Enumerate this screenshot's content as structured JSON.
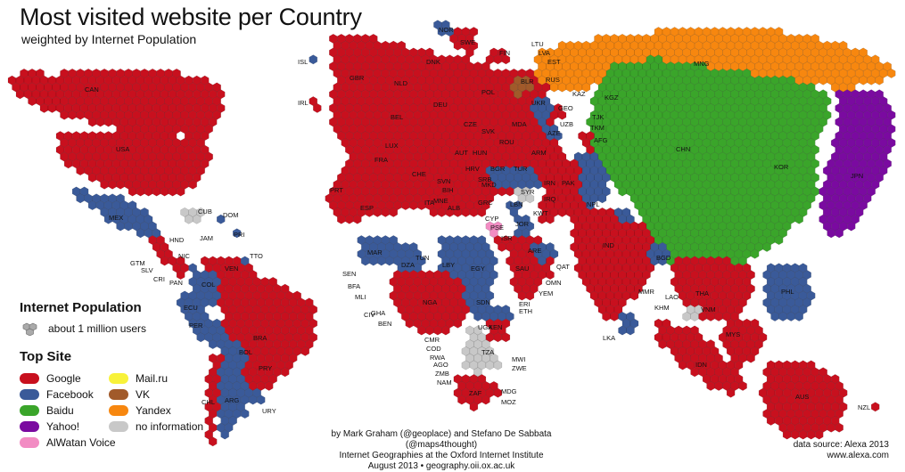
{
  "title": "Most visited website per Country",
  "subtitle": "weighted by Internet Population",
  "colors": {
    "google": "#c8101e",
    "facebook": "#3a5a99",
    "baidu": "#3aa52a",
    "yahoo": "#7a0aa0",
    "alwatan": "#f28cc3",
    "mailru": "#f8f23a",
    "vk": "#a15a2a",
    "yandex": "#f7870f",
    "noinfo": "#c8c8c8"
  },
  "legend": {
    "population_heading": "Internet Population",
    "population_item": "about 1 million users",
    "topsite_heading": "Top Site",
    "items": [
      {
        "key": "google",
        "label": "Google"
      },
      {
        "key": "facebook",
        "label": "Facebook"
      },
      {
        "key": "baidu",
        "label": "Baidu"
      },
      {
        "key": "yahoo",
        "label": "Yahoo!"
      },
      {
        "key": "alwatan",
        "label": "AlWatan Voice"
      },
      {
        "key": "mailru",
        "label": "Mail.ru"
      },
      {
        "key": "vk",
        "label": "VK"
      },
      {
        "key": "yandex",
        "label": "Yandex"
      },
      {
        "key": "noinfo",
        "label": "no information"
      }
    ]
  },
  "credits": {
    "line1": "by Mark Graham (@geoplace) and Stefano De Sabbata (@maps4thought)",
    "line2": "Internet Geographies at the Oxford Internet Institute",
    "line3": "August 2013 • geography.oii.ox.ac.uk"
  },
  "source": {
    "line1": "data source: Alexa 2013",
    "line2": "www.alexa.com"
  },
  "countries": [
    "CAN",
    "USA",
    "MEX",
    "CUB",
    "DOM",
    "PRI",
    "HND",
    "JAM",
    "GTM",
    "SLV",
    "NIC",
    "CRI",
    "PAN",
    "TTO",
    "VEN",
    "COL",
    "ECU",
    "PER",
    "BRA",
    "BOL",
    "PRY",
    "CHL",
    "ARG",
    "URY",
    "ISL",
    "IRL",
    "GBR",
    "NOR",
    "SWE",
    "FIN",
    "LTU",
    "LVA",
    "EST",
    "DNK",
    "NLD",
    "BEL",
    "LUX",
    "FRA",
    "DEU",
    "POL",
    "BLR",
    "UKR",
    "MDA",
    "CZE",
    "SVK",
    "AUT",
    "HUN",
    "CHE",
    "ROU",
    "BGR",
    "HRV",
    "SVN",
    "SRB",
    "BIH",
    "MNE",
    "MKD",
    "ALB",
    "GRC",
    "ITA",
    "ESP",
    "PRT",
    "TUR",
    "RUS",
    "KAZ",
    "KGZ",
    "GEO",
    "AZE",
    "ARM",
    "UZB",
    "TJK",
    "TKM",
    "AFG",
    "PAK",
    "IRN",
    "IRQ",
    "SYR",
    "LBN",
    "CYP",
    "PSE",
    "ISR",
    "JOR",
    "KWT",
    "SAU",
    "ARE",
    "QAT",
    "OMN",
    "YEM",
    "EGY",
    "LBY",
    "TUN",
    "DZA",
    "MAR",
    "SEN",
    "BFA",
    "MLI",
    "CIV",
    "GHA",
    "BEN",
    "NGA",
    "CMR",
    "COD",
    "RWA",
    "AGO",
    "ZMB",
    "NAM",
    "ZAF",
    "MOZ",
    "MDG",
    "MWI",
    "ZWE",
    "TZA",
    "UGA",
    "KEN",
    "ETH",
    "ERI",
    "SDN",
    "IND",
    "NPL",
    "BGD",
    "LKA",
    "MMR",
    "LAO",
    "KHM",
    "THA",
    "VNM",
    "MYS",
    "IDN",
    "PHL",
    "CHN",
    "MNG",
    "KOR",
    "JPN",
    "AUS",
    "NZL"
  ]
}
